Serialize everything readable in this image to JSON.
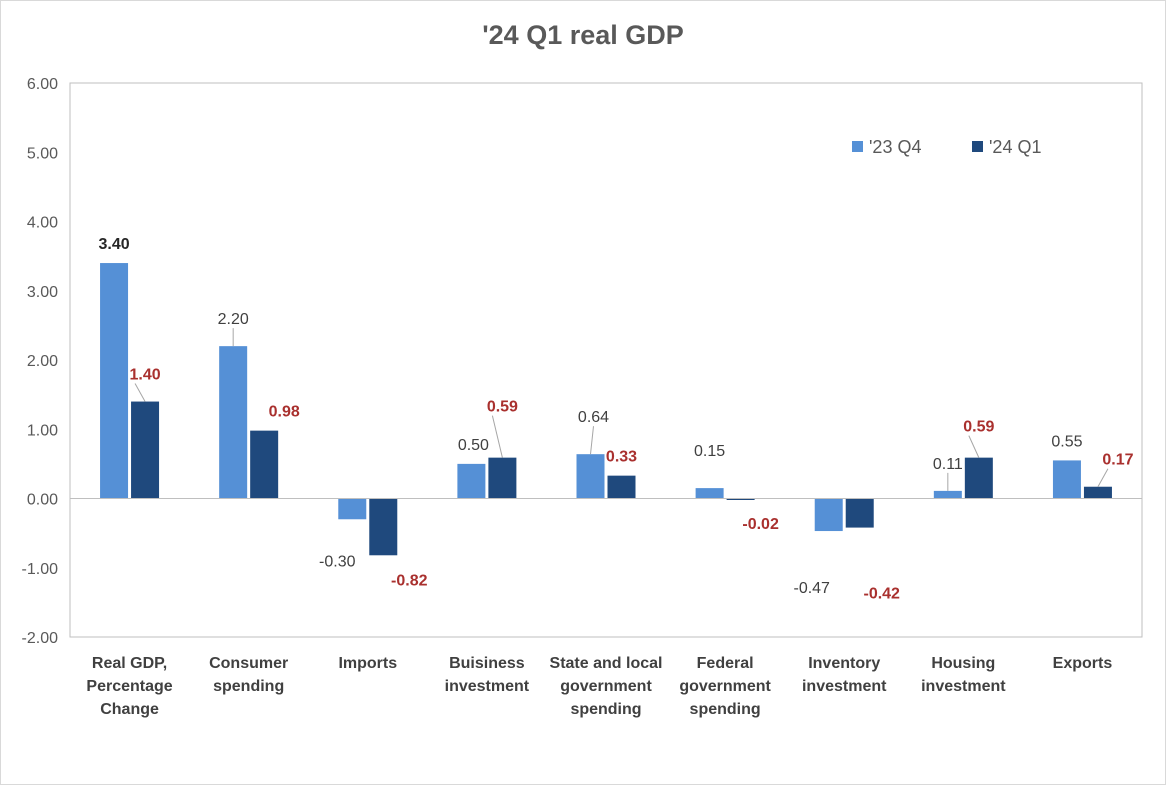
{
  "chart_data": {
    "type": "bar",
    "title": "'24 Q1 real GDP",
    "categories": [
      [
        "Real GDP,",
        "Percentage",
        "Change"
      ],
      [
        "Consumer",
        "spending"
      ],
      [
        "Imports"
      ],
      [
        "Buisiness",
        "investment"
      ],
      [
        "State and local",
        "government",
        "spending"
      ],
      [
        "Federal",
        "government",
        "spending"
      ],
      [
        "Inventory",
        "investment"
      ],
      [
        "Housing",
        "investment"
      ],
      [
        "Exports"
      ]
    ],
    "series": [
      {
        "name": "'23 Q4",
        "color": "#5590d6",
        "values": [
          3.4,
          2.2,
          -0.3,
          0.5,
          0.64,
          0.15,
          -0.47,
          0.11,
          0.55
        ],
        "labels": [
          "3.40",
          "2.20",
          "-0.30",
          "0.50",
          "0.64",
          "0.15",
          "-0.47",
          "0.11",
          "0.55"
        ]
      },
      {
        "name": "'24 Q1",
        "color": "#1f497d",
        "values": [
          1.4,
          0.98,
          -0.82,
          0.59,
          0.33,
          -0.02,
          -0.42,
          0.59,
          0.17
        ],
        "labels": [
          "1.40",
          "0.98",
          "-0.82",
          "0.59",
          "0.33",
          "-0.02",
          "-0.42",
          "0.59",
          "0.17"
        ]
      }
    ],
    "yticks": [
      "6.00",
      "5.00",
      "4.00",
      "3.00",
      "2.00",
      "1.00",
      "0.00",
      "-1.00",
      "-2.00"
    ],
    "ylim": [
      -2,
      6
    ],
    "legend": "top-right",
    "grid": false
  }
}
